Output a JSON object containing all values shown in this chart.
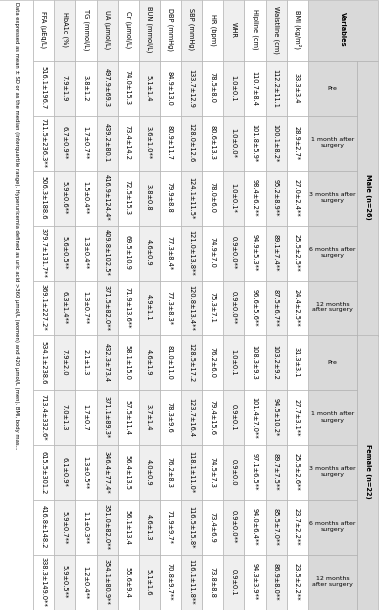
{
  "rows": [
    {
      "var": "BMI (kg/m²)",
      "male": [
        "33.3±3.4",
        "28.9±2.7*",
        "27.0±2.4**",
        "25.5±2.5**",
        "24.4±2.5**"
      ],
      "female": [
        "31.3±3.1",
        "27.7±3.1**",
        "25.5±2.6**",
        "23.7±2.2**",
        "23.5±2.2**"
      ]
    },
    {
      "var": "Waistline (cm)",
      "male": [
        "112.2±11.1",
        "100.1±8.2*",
        "95.2±8.9**",
        "89.1±7.4**",
        "87.5±6.7**"
      ],
      "female": [
        "103.2±9.2",
        "94.5±10.2*",
        "89.7±7.5**",
        "85.5±7.0**",
        "86.9±8.0**"
      ]
    },
    {
      "var": "Hipline (cm)",
      "male": [
        "110.7±8.4",
        "101.8±5.9*",
        "98.4±6.2**",
        "94.9±5.3**",
        "96.6±5.6**"
      ],
      "female": [
        "108.3±9.3",
        "101.4±7.0**",
        "97.1±6.5**",
        "94.0±6.4**",
        "94.3±3.9**"
      ]
    },
    {
      "var": "WHR",
      "male": [
        "1.0±0.1",
        "1.0±0.0*",
        "1.0±0.1*",
        "0.9±0.0**",
        "0.9±0.0**"
      ],
      "female": [
        "1.0±0.1",
        "0.9±0.1",
        "0.9±0.0",
        "0.9±0.0**",
        "0.9±0.1"
      ]
    },
    {
      "var": "HR (bpm)",
      "male": [
        "78.5±8.0",
        "80.6±13.3",
        "78.0±6.0",
        "74.9±7.0",
        "75.3±7.1"
      ],
      "female": [
        "76.2±6.0",
        "79.4±15.6",
        "74.5±7.3",
        "73.4±6.9",
        "73.8±8.8"
      ]
    },
    {
      "var": "SBP (mmHg)",
      "male": [
        "133.7±12.9",
        "128.0±12.6",
        "124.1±11.5*",
        "121.0±13.8**",
        "120.8±13.4**"
      ],
      "female": [
        "128.5±17.2",
        "123.7±16.4",
        "118.1±11.0*",
        "116.5±15.8*",
        "116.1±11.8**"
      ]
    },
    {
      "var": "DBP (mmHg)",
      "male": [
        "84.9±13.0",
        "80.9±11.7",
        "79.9±8.8",
        "77.3±8.4*",
        "77.3±8.3*"
      ],
      "female": [
        "81.0±11.0",
        "78.3±9.6",
        "76.2±8.3",
        "71.9±9.7*",
        "70.8±9.7**"
      ]
    },
    {
      "var": "BUN (mmol/L)",
      "male": [
        "5.1±1.4",
        "3.6±1.0**",
        "3.8±0.8",
        "4.6±0.9",
        "4.9±1.1"
      ],
      "female": [
        "4.6±1.9",
        "3.7±1.4",
        "4.0±0.9",
        "4.6±1.3",
        "5.1±1.6"
      ]
    },
    {
      "var": "Cr (µmol/L)",
      "male": [
        "74.0±15.3",
        "73.4±14.2",
        "72.5±15.3",
        "69.5±10.9",
        "71.9±13.6**"
      ],
      "female": [
        "58.1±15.0",
        "57.5±11.4",
        "56.4±13.5",
        "56.1±13.4",
        "55.6±9.4"
      ]
    },
    {
      "var": "UA (µmol/L)",
      "male": [
        "497.9±69.3",
        "439.2±80.1",
        "416.9±124.4*",
        "409.8±102.5*",
        "371.5±82.0**"
      ],
      "female": [
        "432.3±73.4",
        "371.1±89.3*",
        "346.4±77.4*",
        "351.0±82.0**",
        "354.1±80.9**"
      ]
    },
    {
      "var": "TG (mmol/L)",
      "male": [
        "3.8±1.2",
        "1.7±0.7**",
        "1.5±0.4**",
        "1.3±0.4**",
        "1.3±0.7**"
      ],
      "female": [
        "2.1±1.3",
        "1.7±0.7",
        "1.3±0.5**",
        "1.1±0.3**",
        "1.2±0.4**"
      ]
    },
    {
      "var": "HbA1c (%)",
      "male": [
        "7.9±1.9",
        "6.7±0.9**",
        "5.9±0.6**",
        "5.6±0.5**",
        "6.3±1.4**"
      ],
      "female": [
        "7.9±2.0",
        "7.0±1.3",
        "6.1±0.9*",
        "5.9±0.7**",
        "5.9±0.5**"
      ]
    },
    {
      "var": "FFA (µEq/L)",
      "male": [
        "516.1±196.7",
        "711.5±236.3**",
        "506.3±188.6",
        "379.7±131.7**",
        "369.1±227.2*"
      ],
      "female": [
        "534.1±238.6",
        "713.4±332.6*",
        "615.5±301.2",
        "416.8±148.2",
        "338.3±149.0**"
      ]
    }
  ],
  "footnote": "Data expressed as mean ± SD or as the median (interquartile range). Hyperuricemia defined as uric acid >360 µmol/L (women) and 420 µmol/L (men). BMI, body mas...",
  "male_label": "Male (n=26)",
  "female_label": "Female (n=22)",
  "sub_labels": [
    "Pre",
    "1 month after\nsurgery",
    "3 months after\nsurgery",
    "6 months after\nsurgery",
    "12 months\nafter surgery"
  ],
  "header_bg": "#d9d9d9",
  "row_bg_even": "#ffffff",
  "row_bg_odd": "#efefef"
}
